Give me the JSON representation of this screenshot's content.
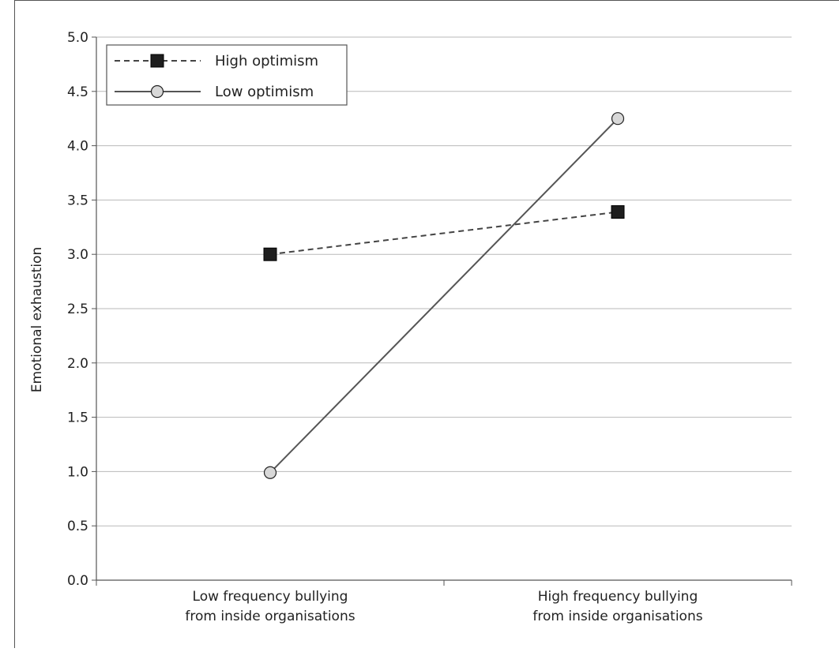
{
  "chart_data": {
    "type": "line",
    "categories": [
      [
        "Low frequency bullying",
        "from inside organisations"
      ],
      [
        "High frequency bullying",
        "from inside organisations"
      ]
    ],
    "series": [
      {
        "name": "High optimism",
        "values": [
          3.0,
          3.39
        ],
        "line_style": "dashed",
        "marker": "square",
        "color": "#444444",
        "marker_fill": "#1e1e1e"
      },
      {
        "name": "Low optimism",
        "values": [
          0.99,
          4.25
        ],
        "line_style": "solid",
        "marker": "circle",
        "color": "#555555",
        "marker_fill": "#d8d8d8"
      }
    ],
    "ylabel": "Emotional exhaustion",
    "xlabel": "",
    "ylim": [
      0,
      5
    ],
    "yticks": [
      "0.0",
      "0.5",
      "1.0",
      "1.5",
      "2.0",
      "2.5",
      "3.0",
      "3.5",
      "4.0",
      "4.5",
      "5.0"
    ],
    "grid": true,
    "legend_position": "top-left"
  }
}
